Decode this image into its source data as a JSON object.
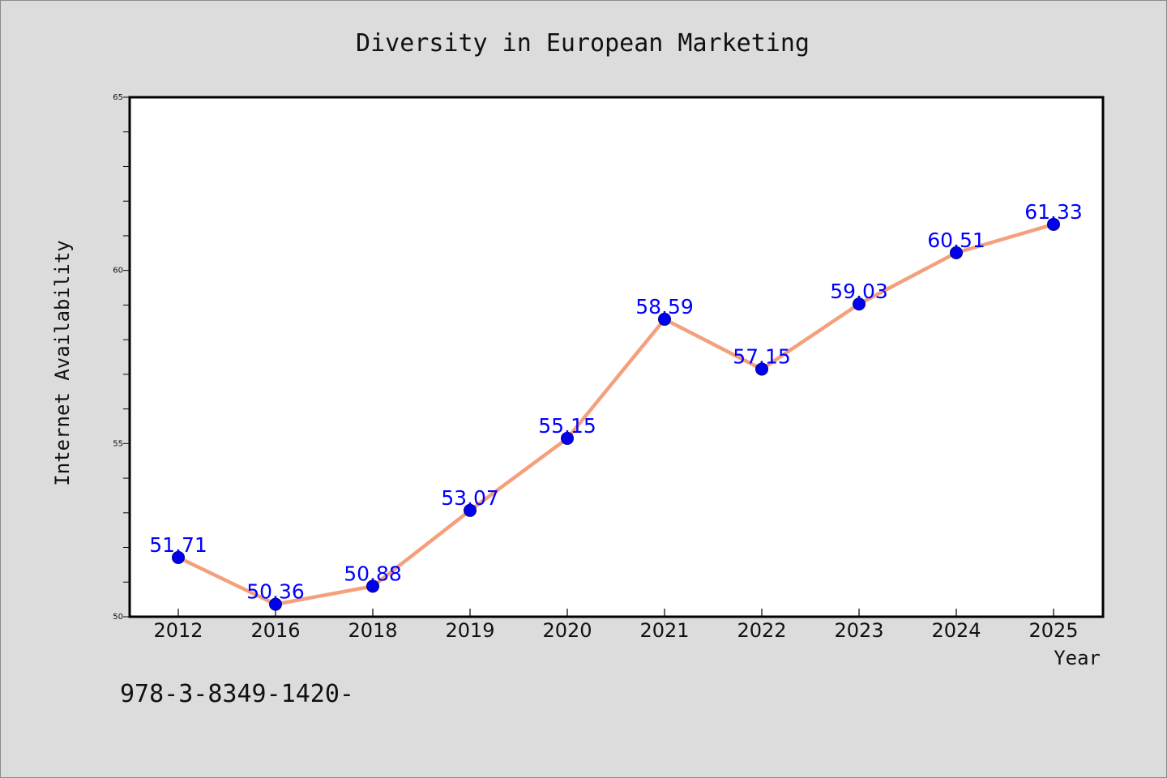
{
  "chart_data": {
    "type": "line",
    "title": "Diversity in European Marketing",
    "xlabel": "Year",
    "ylabel": "Internet Availability",
    "categories": [
      "2012",
      "2016",
      "2018",
      "2019",
      "2020",
      "2021",
      "2022",
      "2023",
      "2024",
      "2025"
    ],
    "series": [
      {
        "values": [
          51.71,
          50.36,
          50.88,
          53.07,
          55.15,
          58.59,
          57.15,
          59.03,
          60.51,
          61.33
        ],
        "line_color": "#f4a07c",
        "marker_color": "#0000ee"
      }
    ],
    "data_labels": [
      "51.71",
      "50.36",
      "50.88",
      "53.07",
      "55.15",
      "58.59",
      "57.15",
      "59.03",
      "60.51",
      "61.33"
    ],
    "ylim": [
      50,
      65
    ],
    "yticks": [
      "50",
      "55",
      "60",
      "65"
    ],
    "grid": false,
    "label_color": "#0000ff"
  },
  "caption": "978-3-8349-1420-"
}
